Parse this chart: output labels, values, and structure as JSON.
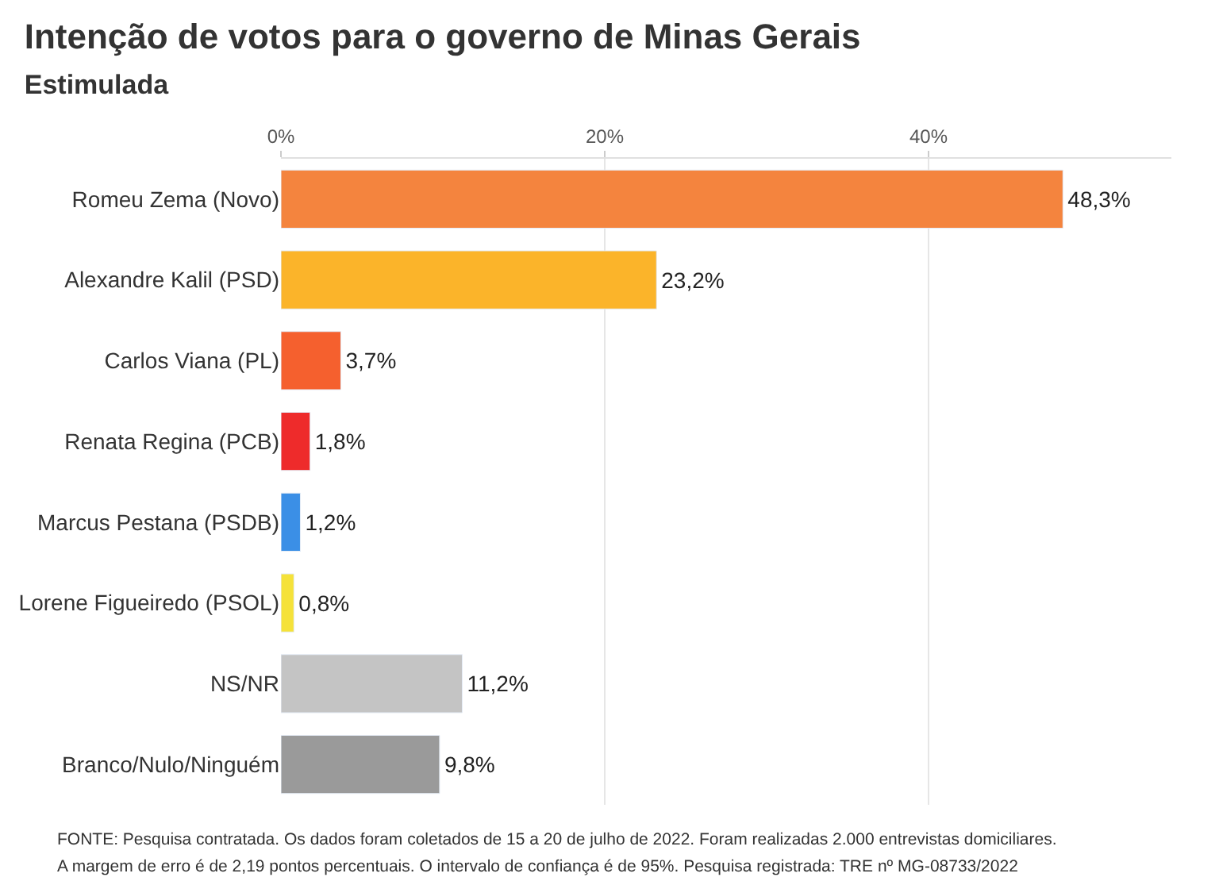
{
  "chart_data": {
    "type": "bar",
    "orientation": "horizontal",
    "title": "Intenção de votos para o governo de Minas Gerais",
    "subtitle": "Estimulada",
    "categories": [
      "Romeu Zema (Novo)",
      "Alexandre Kalil (PSD)",
      "Carlos Viana (PL)",
      "Renata Regina (PCB)",
      "Marcus Pestana (PSDB)",
      "Lorene Figueiredo (PSOL)",
      "NS/NR",
      "Branco/Nulo/Ninguém"
    ],
    "values": [
      48.3,
      23.2,
      3.7,
      1.8,
      1.2,
      0.8,
      11.2,
      9.8
    ],
    "colors": [
      "#f4843e",
      "#fbb42a",
      "#f5602e",
      "#ee2b2b",
      "#3b8fe6",
      "#f5e23a",
      "#c4c4c4",
      "#9a9a9a"
    ],
    "value_labels": [
      "48,3%",
      "23,2%",
      "3,7%",
      "1,8%",
      "1,2%",
      "0,8%",
      "11,2%",
      "9,8%"
    ],
    "xlim": [
      0,
      55
    ],
    "xticks": [
      {
        "value": 0,
        "label": "0%"
      },
      {
        "value": 20,
        "label": "20%"
      },
      {
        "value": 40,
        "label": "40%"
      }
    ],
    "grid": "x",
    "annotations": [
      "FONTE: Pesquisa contratada. Os dados foram coletados de 15 a 20 de julho de 2022. Foram realizadas 2.000 entrevistas domiciliares.",
      "A margem de erro é de 2,19 pontos percentuais. O intervalo de confiança é de 95%. Pesquisa registrada: TRE nº MG-08733/2022"
    ]
  }
}
